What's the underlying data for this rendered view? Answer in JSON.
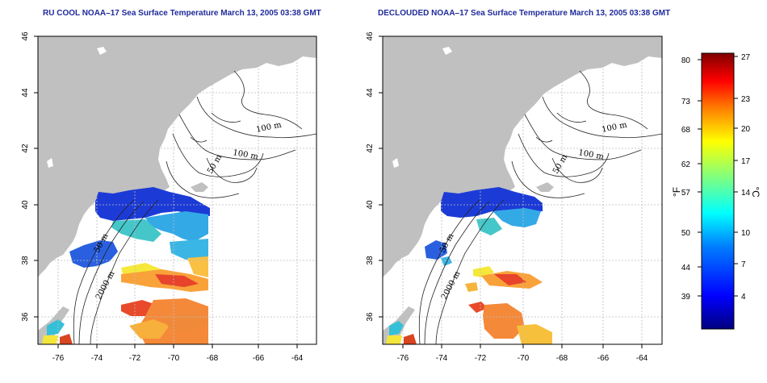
{
  "panels": [
    {
      "title": "RU COOL NOAA–17 Sea Surface Temperature March 13, 2005 03:38 GMT",
      "contour_labels": [
        "100 m",
        "100 m",
        "50 m",
        "50 m",
        "2000 m"
      ]
    },
    {
      "title": "DECLOUDED NOAA–17 Sea Surface Temperature March 13, 2005 03:38 GMT",
      "contour_labels": [
        "100 m",
        "100 m",
        "50 m",
        "50 m",
        "2000 m"
      ]
    }
  ],
  "axes": {
    "lon_ticks": [
      "-76",
      "-74",
      "-72",
      "-70",
      "-68",
      "-66",
      "-64"
    ],
    "lat_ticks": [
      "46",
      "44",
      "42",
      "40",
      "38",
      "36"
    ],
    "lon_range": [
      -77.2,
      -62.9
    ],
    "lat_range": [
      35.0,
      46.0
    ]
  },
  "colorbar": {
    "fahrenheit_ticks": [
      "80",
      "73",
      "68",
      "62",
      "57",
      "50",
      "44",
      "39"
    ],
    "celsius_ticks": [
      "27",
      "23",
      "20",
      "17",
      "14",
      "10",
      "7",
      "4"
    ],
    "fahrenheit_unit": "°F",
    "celsius_unit": "°C",
    "range_celsius": [
      0,
      27
    ],
    "colors": [
      "#00007f",
      "#0000ff",
      "#007fff",
      "#00ffff",
      "#7fff7f",
      "#ffff00",
      "#ff7f00",
      "#ff0000",
      "#7f0000"
    ]
  },
  "colors": {
    "land": "#c0c0c0",
    "water": "#ffffff",
    "grid": "#bdbdbd",
    "title": "#1f2a9b"
  }
}
